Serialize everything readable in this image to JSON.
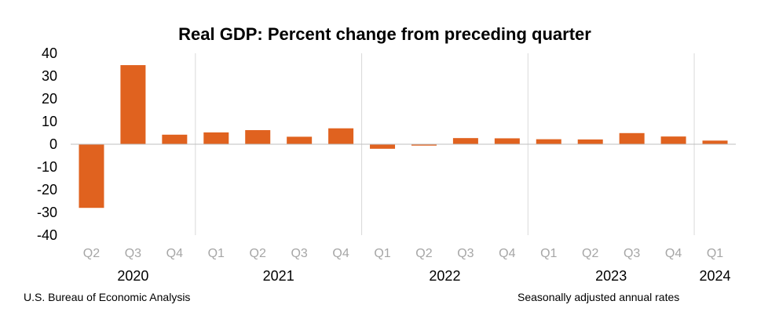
{
  "chart_data": {
    "type": "bar",
    "title": "Real GDP:  Percent change from preceding quarter",
    "categories": [
      "Q2",
      "Q3",
      "Q4",
      "Q1",
      "Q2",
      "Q3",
      "Q4",
      "Q1",
      "Q2",
      "Q3",
      "Q4",
      "Q1",
      "Q2",
      "Q3",
      "Q4",
      "Q1"
    ],
    "years": [
      {
        "label": "2020",
        "start": 0,
        "end": 2
      },
      {
        "label": "2021",
        "start": 3,
        "end": 6
      },
      {
        "label": "2022",
        "start": 7,
        "end": 10
      },
      {
        "label": "2023",
        "start": 11,
        "end": 14
      },
      {
        "label": "2024",
        "start": 15,
        "end": 15
      }
    ],
    "values": [
      -28.0,
      34.8,
      4.2,
      5.2,
      6.2,
      3.3,
      7.0,
      -2.0,
      -0.6,
      2.7,
      2.6,
      2.2,
      2.1,
      4.9,
      3.4,
      1.6
    ],
    "ylim": [
      -40,
      40
    ],
    "yticks": [
      "40",
      "30",
      "20",
      "10",
      "0",
      "-10",
      "-20",
      "-30",
      "-40"
    ],
    "ytick_values": [
      40,
      30,
      20,
      10,
      0,
      -10,
      -20,
      -30,
      -40
    ],
    "bar_color": "#e0621f",
    "gridlines": false,
    "year_separators": true
  },
  "footer": {
    "source": "U.S. Bureau of Economic Analysis",
    "note": "Seasonally adjusted annual rates"
  }
}
